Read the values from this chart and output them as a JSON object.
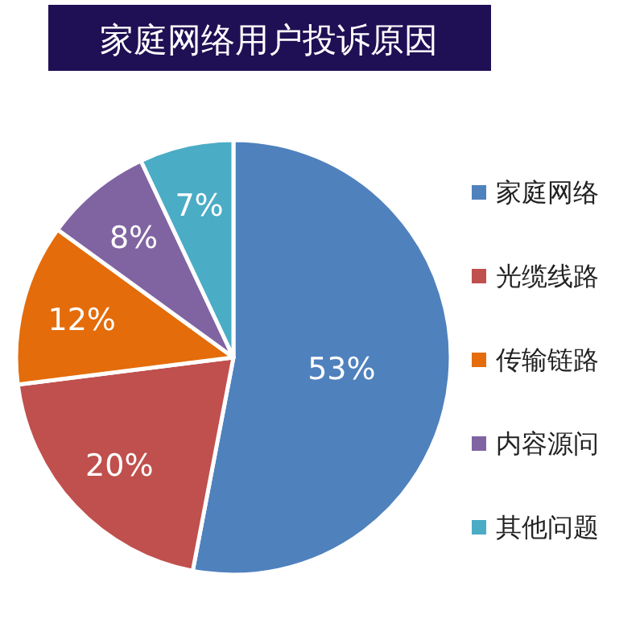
{
  "chart_data": {
    "type": "pie",
    "title": "家庭网络用户投诉原因",
    "categories": [
      "家庭网络",
      "光缆线路",
      "传输链路",
      "内容源问",
      "其他问题"
    ],
    "values": [
      53,
      20,
      12,
      8,
      7
    ],
    "value_labels": [
      "53%",
      "20%",
      "12%",
      "8%",
      "7%"
    ],
    "colors": [
      "#4f81bd",
      "#c0504d",
      "#e46c0a",
      "#8064a2",
      "#4bacc6"
    ],
    "legend": "right"
  }
}
